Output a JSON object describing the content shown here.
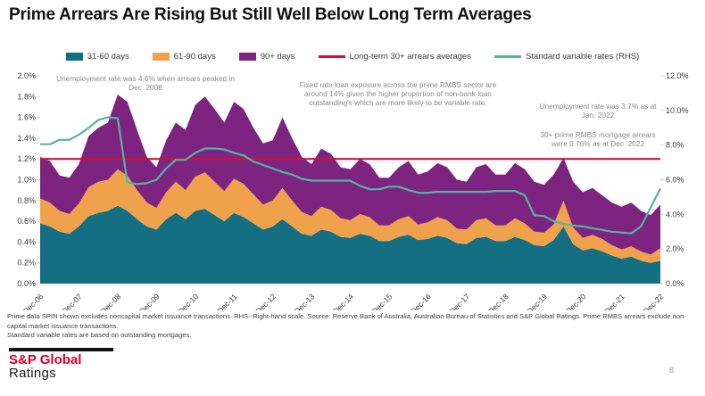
{
  "title": "Prime Arrears Are Rising But Still Well Below Long Term Averages",
  "legend": [
    {
      "label": "31-60 days",
      "color": "#156f83",
      "kind": "area"
    },
    {
      "label": "61-90 days",
      "color": "#efa14b",
      "kind": "area"
    },
    {
      "label": "90+ days",
      "color": "#7d2480",
      "kind": "area"
    },
    {
      "label": "Long-term 30+ arrears averages",
      "color": "#d0103a",
      "kind": "line"
    },
    {
      "label": "Standard variable rates (RHS)",
      "color": "#52b5a0",
      "kind": "line"
    }
  ],
  "chart_data": {
    "type": "area",
    "subtype": "stacked-area-with-lines",
    "x_labels": [
      "Dec-06",
      "Dec-07",
      "Dec-08",
      "Dec-09",
      "Dec-10",
      "Dec-11",
      "Dec-12",
      "Dec-13",
      "Dec-14",
      "Dec-15",
      "Dec-16",
      "Dec-17",
      "Dec-18",
      "Dec-19",
      "Dec-20",
      "Dec-21",
      "Dec-22"
    ],
    "points_per_year": 4,
    "left_axis": {
      "min": 0,
      "max": 2.0,
      "step": 0.2,
      "format": "percent",
      "tick_labels": [
        "0.0%",
        "0.2%",
        "0.4%",
        "0.6%",
        "0.8%",
        "1.0%",
        "1.2%",
        "1.4%",
        "1.6%",
        "1.8%",
        "2.0%"
      ]
    },
    "right_axis": {
      "min": 0,
      "max": 12.0,
      "step": 2.0,
      "format": "percent",
      "tick_labels": [
        "0.0%",
        "2.0%",
        "4.0%",
        "6.0%",
        "8.0%",
        "10.0%",
        "12.0%"
      ]
    },
    "grid": false,
    "legend_position": "top",
    "series": [
      {
        "name": "31-60 days",
        "kind": "area",
        "axis": "left",
        "color": "#156f83",
        "values": [
          0.58,
          0.55,
          0.5,
          0.48,
          0.55,
          0.65,
          0.68,
          0.7,
          0.75,
          0.7,
          0.62,
          0.55,
          0.52,
          0.62,
          0.68,
          0.62,
          0.7,
          0.72,
          0.66,
          0.6,
          0.68,
          0.64,
          0.58,
          0.52,
          0.55,
          0.62,
          0.55,
          0.48,
          0.46,
          0.52,
          0.5,
          0.45,
          0.44,
          0.48,
          0.46,
          0.41,
          0.41,
          0.45,
          0.47,
          0.42,
          0.43,
          0.46,
          0.44,
          0.39,
          0.38,
          0.44,
          0.45,
          0.41,
          0.41,
          0.45,
          0.42,
          0.37,
          0.36,
          0.42,
          0.55,
          0.38,
          0.32,
          0.34,
          0.31,
          0.27,
          0.24,
          0.26,
          0.22,
          0.2,
          0.22
        ]
      },
      {
        "name": "61-90 days",
        "kind": "area",
        "axis": "left",
        "color": "#efa14b",
        "values": [
          0.24,
          0.23,
          0.2,
          0.19,
          0.22,
          0.28,
          0.3,
          0.3,
          0.35,
          0.34,
          0.28,
          0.23,
          0.21,
          0.26,
          0.3,
          0.28,
          0.33,
          0.35,
          0.32,
          0.29,
          0.33,
          0.32,
          0.28,
          0.24,
          0.25,
          0.3,
          0.25,
          0.21,
          0.19,
          0.22,
          0.21,
          0.18,
          0.17,
          0.19,
          0.18,
          0.15,
          0.15,
          0.17,
          0.18,
          0.15,
          0.16,
          0.18,
          0.17,
          0.14,
          0.14,
          0.17,
          0.18,
          0.15,
          0.15,
          0.18,
          0.16,
          0.13,
          0.13,
          0.15,
          0.25,
          0.16,
          0.12,
          0.13,
          0.12,
          0.1,
          0.09,
          0.1,
          0.09,
          0.08,
          0.12
        ]
      },
      {
        "name": "90+ days",
        "kind": "area",
        "axis": "left",
        "color": "#7d2480",
        "values": [
          0.4,
          0.4,
          0.34,
          0.35,
          0.38,
          0.49,
          0.52,
          0.55,
          0.72,
          0.71,
          0.58,
          0.44,
          0.39,
          0.5,
          0.57,
          0.58,
          0.69,
          0.73,
          0.7,
          0.66,
          0.74,
          0.72,
          0.64,
          0.59,
          0.58,
          0.68,
          0.6,
          0.53,
          0.5,
          0.56,
          0.54,
          0.49,
          0.49,
          0.53,
          0.51,
          0.46,
          0.46,
          0.5,
          0.53,
          0.48,
          0.49,
          0.52,
          0.51,
          0.47,
          0.46,
          0.51,
          0.52,
          0.49,
          0.49,
          0.53,
          0.52,
          0.48,
          0.46,
          0.48,
          0.41,
          0.44,
          0.44,
          0.45,
          0.42,
          0.41,
          0.41,
          0.42,
          0.39,
          0.38,
          0.42
        ]
      },
      {
        "name": "Long-term 30+ arrears averages",
        "kind": "line",
        "axis": "left",
        "color": "#d0103a",
        "constant": 1.2
      },
      {
        "name": "Standard variable rates (RHS)",
        "kind": "line",
        "axis": "right",
        "color": "#52b5a0",
        "values": [
          8.05,
          8.05,
          8.3,
          8.3,
          8.6,
          9.0,
          9.45,
          9.6,
          9.55,
          5.85,
          5.75,
          5.8,
          6.0,
          6.65,
          7.15,
          7.15,
          7.55,
          7.8,
          7.8,
          7.75,
          7.55,
          7.4,
          7.05,
          6.85,
          6.65,
          6.45,
          6.3,
          6.05,
          5.95,
          5.95,
          5.95,
          5.95,
          5.95,
          5.65,
          5.45,
          5.45,
          5.6,
          5.6,
          5.4,
          5.25,
          5.25,
          5.3,
          5.3,
          5.3,
          5.3,
          5.3,
          5.3,
          5.35,
          5.35,
          5.35,
          5.1,
          3.95,
          3.9,
          3.6,
          3.45,
          3.35,
          3.3,
          3.2,
          3.1,
          3.0,
          2.95,
          2.9,
          3.3,
          4.4,
          5.5
        ]
      }
    ],
    "annotations": [
      {
        "text": "Unemployment rate was 4.6% when arrears peaked in Dec. 2008"
      },
      {
        "text": "Fixed rate loan exposure across the prime RMBS sector are around 14% given the higher proportion of non-bank loan outstanding's which are more likely to be variable rate."
      },
      {
        "text": "Unemployment rate was 3.7% as at Jan. 2022"
      },
      {
        "text": "30+ prime RMBS mortgage arrears were 0.76% as at Dec. 2022"
      }
    ]
  },
  "footnotes": [
    "Prime data SPIN shown excludes noncapital market issuance transactions. RHS--Right-hand scale. Source: Reserve Bank of Australia, Australian Bureau of Statistics and S&P Global Ratings. Prime RMBS arrears exclude non-capital market issuance transactions.",
    "Standard variable rates are based on outstanding mortgages."
  ],
  "logo": {
    "brand": "S&P Global",
    "division": "Ratings",
    "brand_color": "#d6002a"
  },
  "page_number": "8"
}
